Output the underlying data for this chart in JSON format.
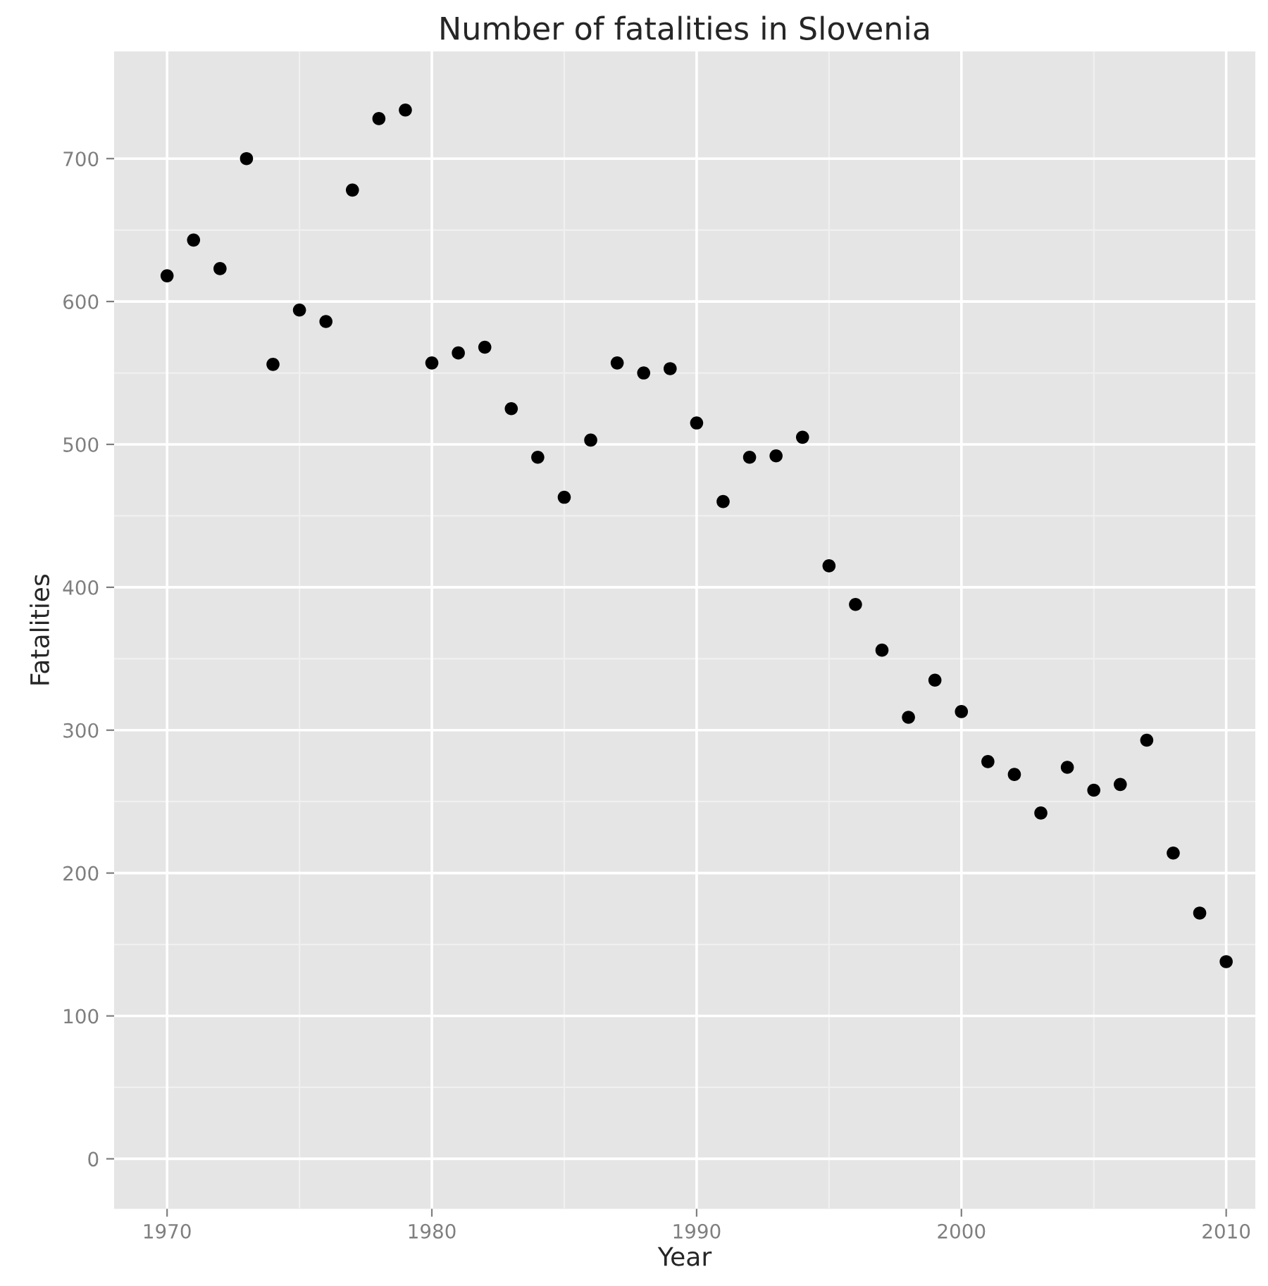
{
  "chart_data": {
    "type": "scatter",
    "title": "Number of fatalities in Slovenia",
    "xlabel": "Year",
    "ylabel": "Fatalities",
    "x": [
      1970,
      1971,
      1972,
      1973,
      1974,
      1975,
      1976,
      1977,
      1978,
      1979,
      1980,
      1981,
      1982,
      1983,
      1984,
      1985,
      1986,
      1987,
      1988,
      1989,
      1990,
      1991,
      1992,
      1993,
      1994,
      1995,
      1996,
      1997,
      1998,
      1999,
      2000,
      2001,
      2002,
      2003,
      2004,
      2005,
      2006,
      2007,
      2008,
      2009,
      2010
    ],
    "series": [
      {
        "color": "#000000",
        "values": [
          618,
          643,
          623,
          700,
          556,
          594,
          586,
          678,
          728,
          734,
          557,
          564,
          568,
          525,
          491,
          463,
          503,
          557,
          550,
          553,
          515,
          460,
          491,
          492,
          505,
          415,
          388,
          356,
          309,
          335,
          313,
          278,
          269,
          242,
          274,
          258,
          262,
          293,
          214,
          172,
          138
        ]
      }
    ],
    "xlim": [
      1968,
      2011.1
    ],
    "xticks": [
      1970,
      1980,
      1990,
      2000,
      2010
    ],
    "ylim": [
      -35,
      775
    ],
    "yticks": [
      0,
      100,
      200,
      300,
      400,
      500,
      600,
      700
    ],
    "grid": true,
    "marker": "circle",
    "legend": false
  }
}
